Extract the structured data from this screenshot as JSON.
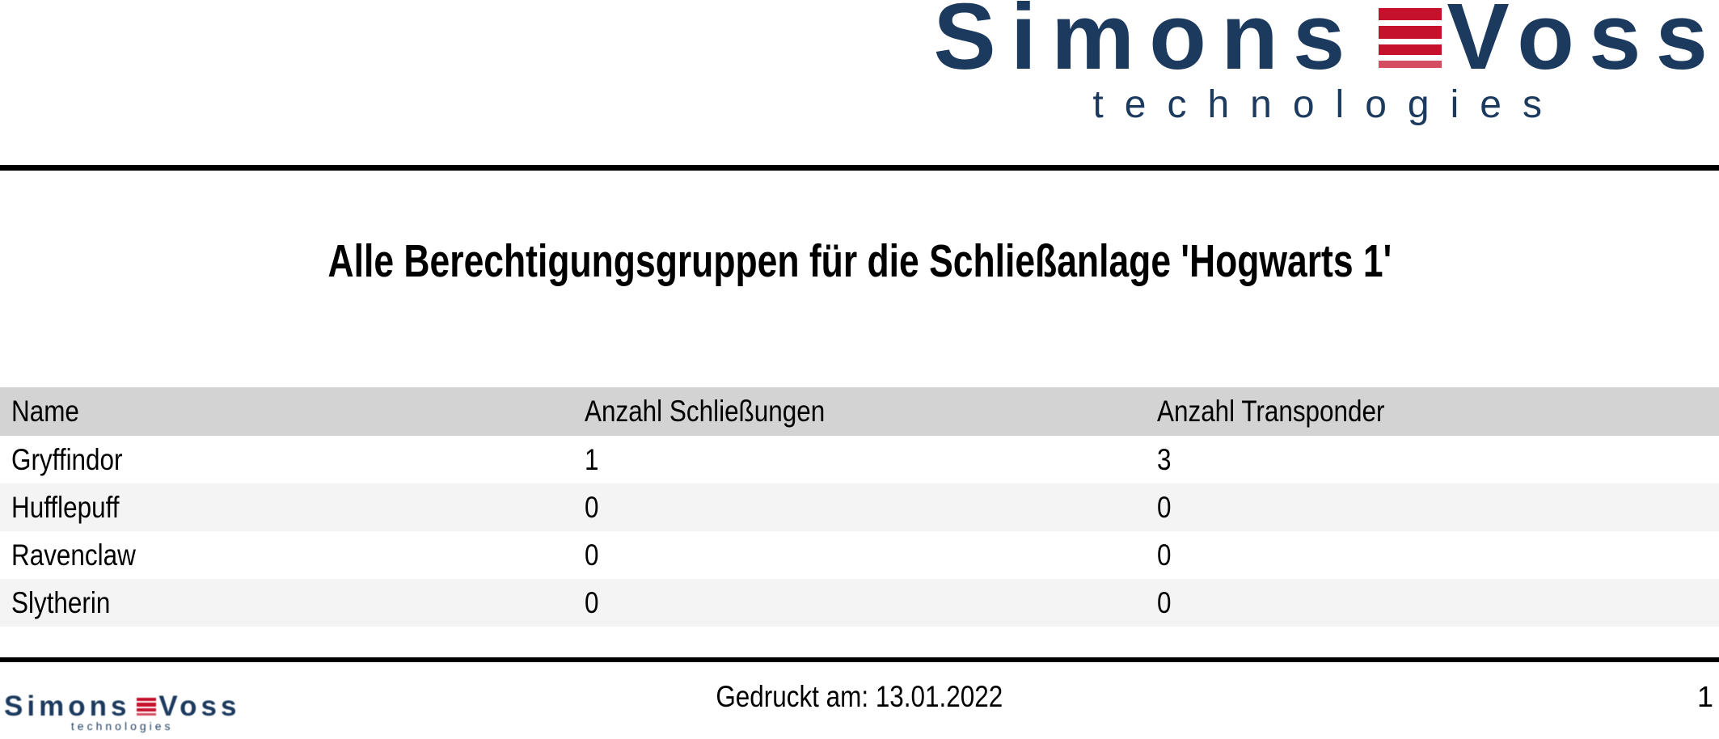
{
  "logo": {
    "part1": "Simons",
    "part2": "Voss",
    "subtitle": "technologies"
  },
  "title": "Alle Berechtigungsgruppen für die Schließanlage 'Hogwarts 1'",
  "table": {
    "columns": [
      "Name",
      "Anzahl Schließungen",
      "Anzahl Transponder"
    ],
    "rows": [
      {
        "name": "Gryffindor",
        "locks": "1",
        "transponders": "3"
      },
      {
        "name": "Hufflepuff",
        "locks": "0",
        "transponders": "0"
      },
      {
        "name": "Ravenclaw",
        "locks": "0",
        "transponders": "0"
      },
      {
        "name": "Slytherin",
        "locks": "0",
        "transponders": "0"
      }
    ]
  },
  "footer": {
    "printed_label": "Gedruckt am: 13.01.2022",
    "page_number": "1"
  },
  "colors": {
    "logo_navy": "#1c3a5e",
    "logo_red": "#c5112c",
    "header_bg": "#d3d3d3",
    "row_alt_bg": "#f4f4f4",
    "rule": "#000000",
    "page_bg": "#ffffff"
  }
}
